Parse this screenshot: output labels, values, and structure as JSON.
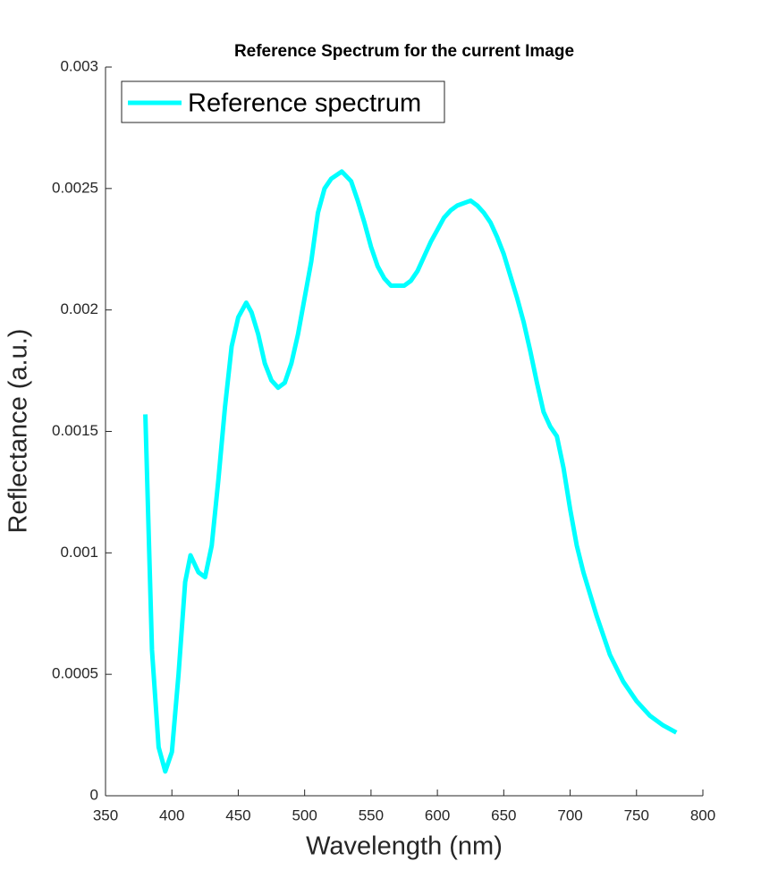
{
  "chart_data": {
    "type": "line",
    "title": "Reference Spectrum for the current Image",
    "xlabel": "Wavelength (nm)",
    "ylabel": "Reflectance (a.u.)",
    "xlim": [
      350,
      800
    ],
    "xticks": [
      350,
      400,
      450,
      500,
      550,
      600,
      650,
      700,
      750,
      800
    ],
    "ylim": [
      0,
      0.003
    ],
    "yticks": [
      0,
      0.0005,
      0.001,
      0.0015,
      0.002,
      0.0025,
      0.003
    ],
    "legend": "upper left",
    "x": [
      380,
      385,
      390,
      395,
      400,
      405,
      410,
      414,
      420,
      425,
      430,
      435,
      440,
      445,
      450,
      456,
      460,
      465,
      470,
      475,
      480,
      485,
      490,
      495,
      500,
      505,
      510,
      515,
      520,
      528,
      535,
      540,
      545,
      550,
      555,
      560,
      565,
      575,
      580,
      585,
      590,
      595,
      600,
      605,
      610,
      615,
      625,
      630,
      635,
      640,
      645,
      650,
      655,
      660,
      665,
      670,
      675,
      680,
      685,
      690,
      695,
      700,
      705,
      710,
      720,
      730,
      740,
      750,
      760,
      770,
      780
    ],
    "series": [
      {
        "name": "Reference spectrum",
        "color": "#00ffff",
        "values": [
          0.00157,
          0.0006,
          0.0002,
          0.0001,
          0.00018,
          0.0005,
          0.00088,
          0.00099,
          0.00092,
          0.0009,
          0.00103,
          0.0013,
          0.0016,
          0.00185,
          0.00197,
          0.00203,
          0.00199,
          0.0019,
          0.00178,
          0.00171,
          0.00168,
          0.0017,
          0.00178,
          0.0019,
          0.00205,
          0.0022,
          0.0024,
          0.0025,
          0.00254,
          0.00257,
          0.00253,
          0.00245,
          0.00236,
          0.00226,
          0.00218,
          0.00213,
          0.0021,
          0.0021,
          0.00212,
          0.00216,
          0.00222,
          0.00228,
          0.00233,
          0.00238,
          0.00241,
          0.00243,
          0.00245,
          0.00243,
          0.0024,
          0.00236,
          0.0023,
          0.00223,
          0.00214,
          0.00205,
          0.00195,
          0.00183,
          0.0017,
          0.00158,
          0.00152,
          0.00148,
          0.00135,
          0.00118,
          0.00103,
          0.00092,
          0.00074,
          0.00058,
          0.00047,
          0.00039,
          0.00033,
          0.00029,
          0.00026
        ]
      }
    ]
  }
}
